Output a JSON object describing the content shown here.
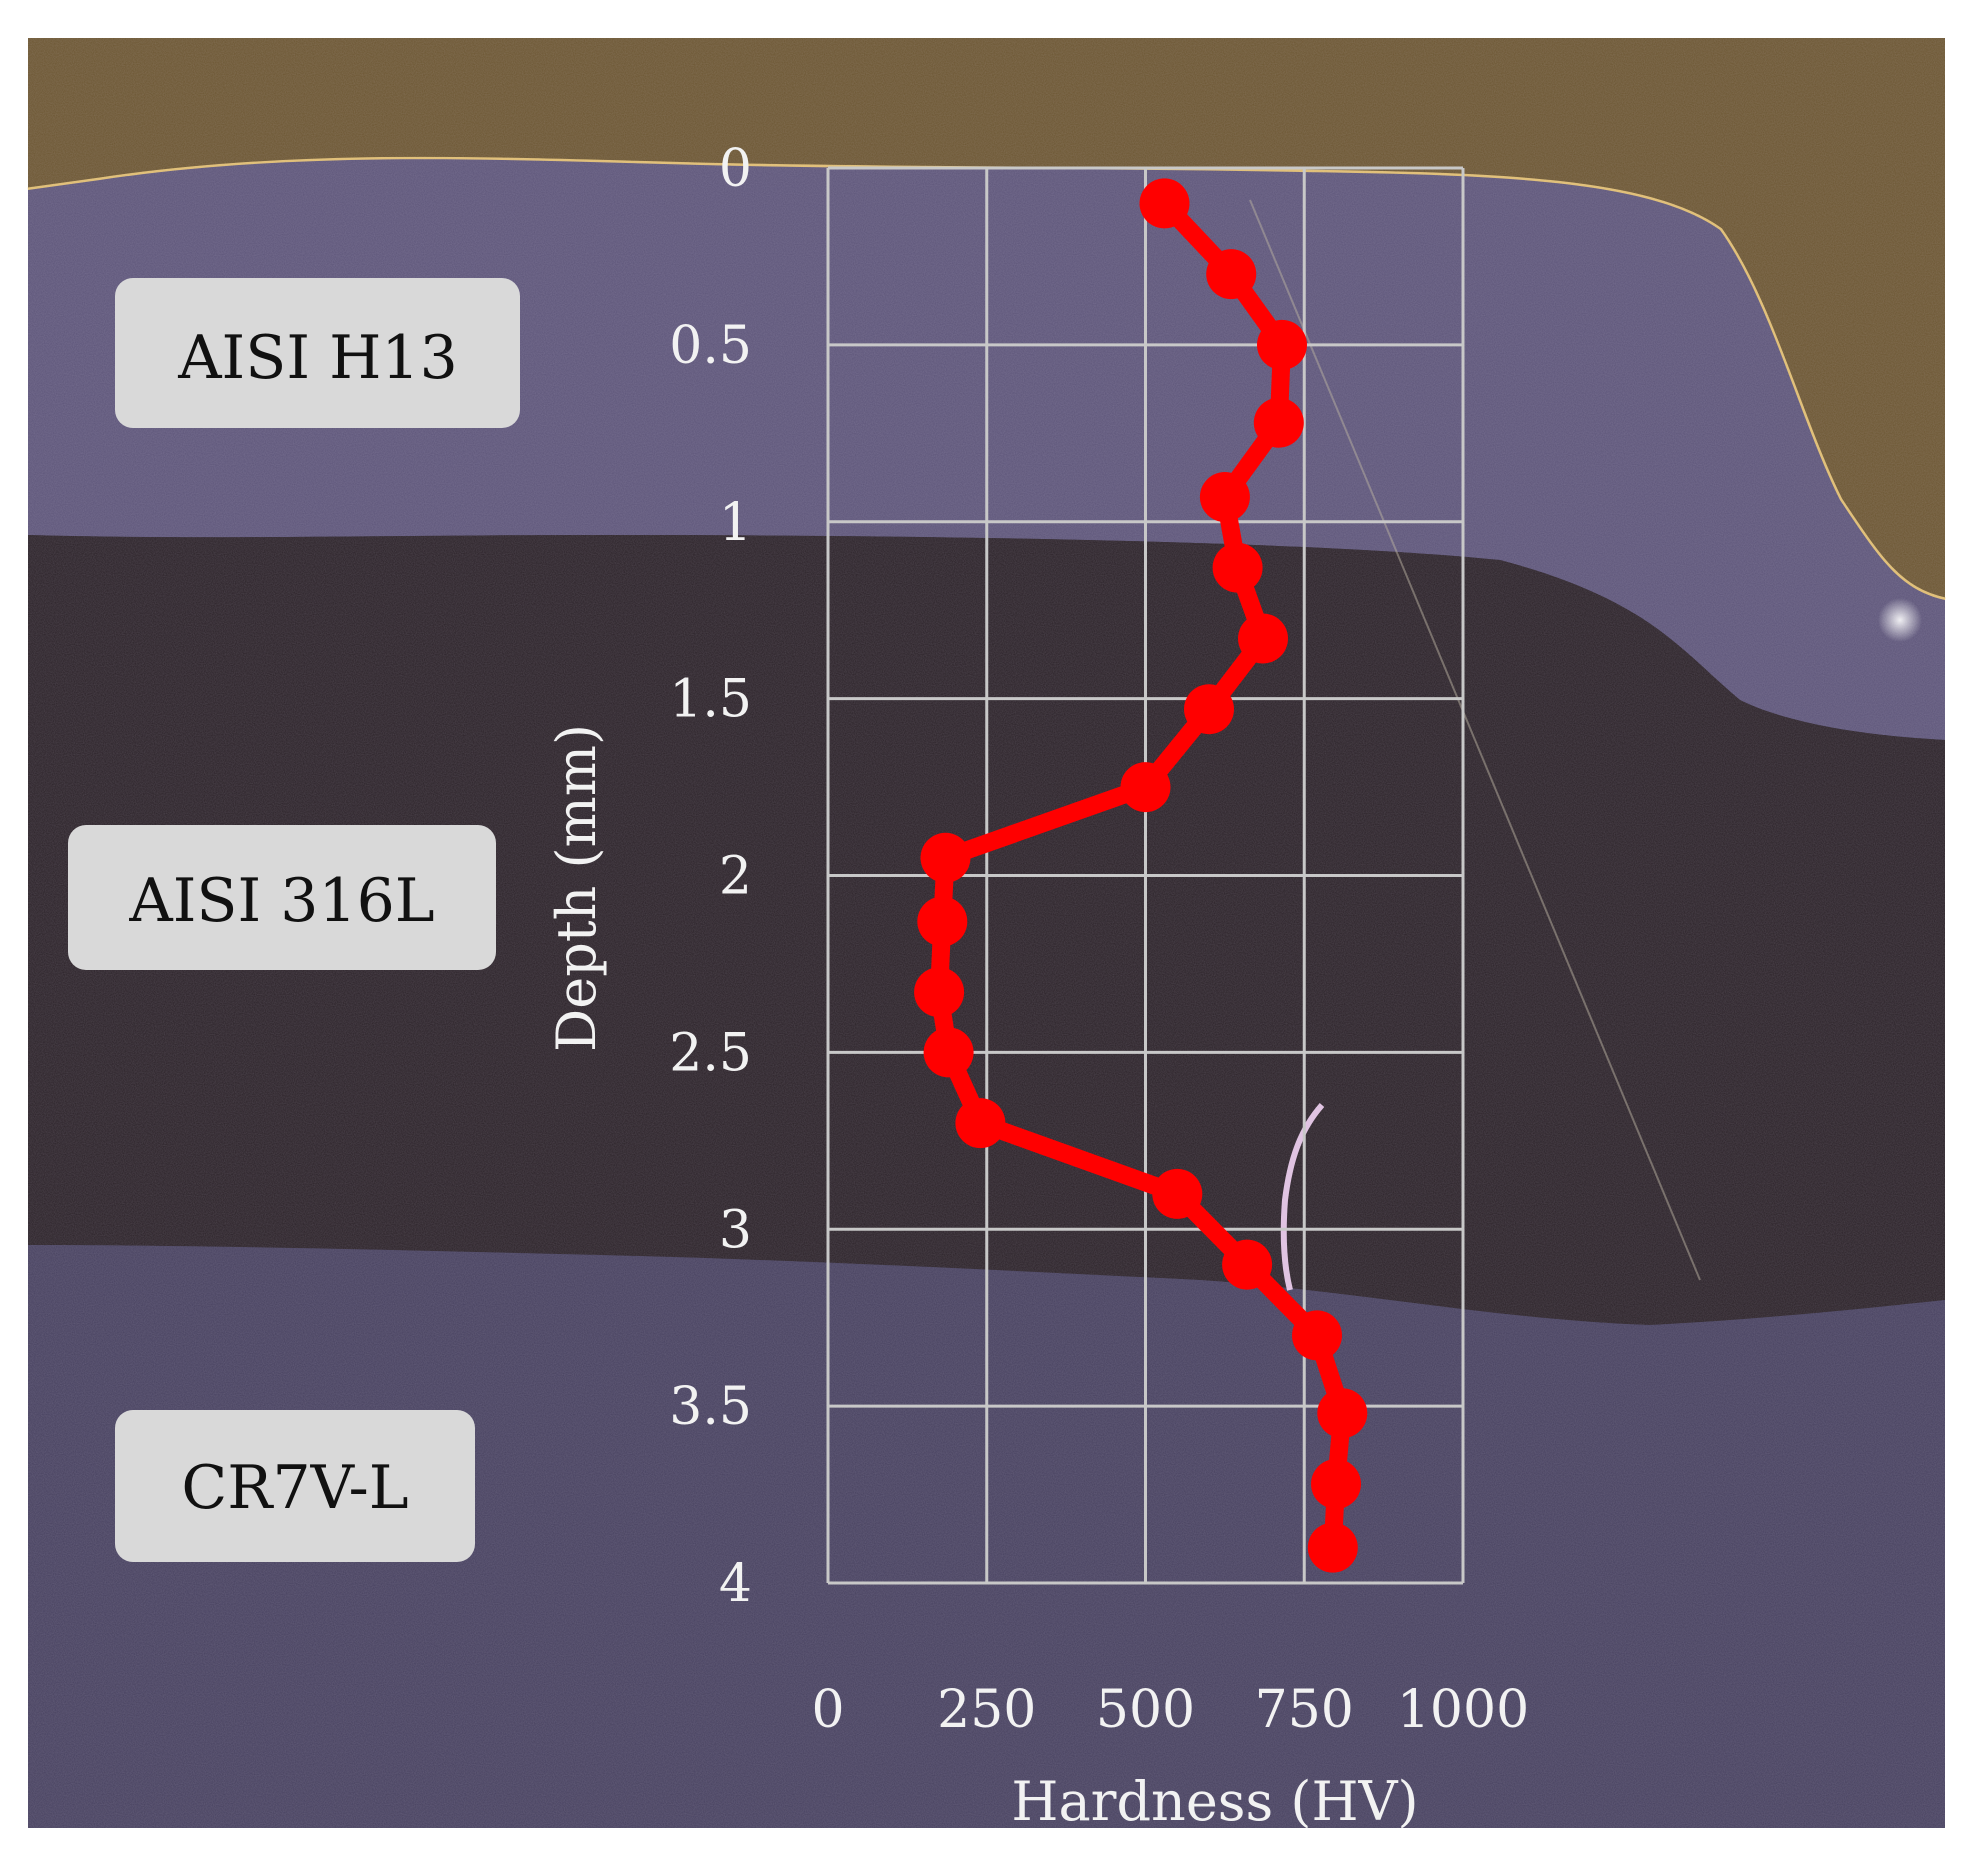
{
  "chart_data": {
    "type": "line",
    "xlabel": "Hardness (HV)",
    "ylabel": "Depth (mm)",
    "x_ticks": [
      "0",
      "250",
      "500",
      "750",
      "1000"
    ],
    "y_ticks": [
      "0",
      "0.5",
      "1",
      "1.5",
      "2",
      "2.5",
      "3",
      "3.5",
      "4"
    ],
    "xlim": [
      0,
      1000
    ],
    "ylim": [
      0,
      4
    ],
    "y_inverted": true,
    "grid": true,
    "series": [
      {
        "color": "#ff0000",
        "points": [
          {
            "hardness": 530,
            "depth": 0.1
          },
          {
            "hardness": 635,
            "depth": 0.3
          },
          {
            "hardness": 715,
            "depth": 0.5
          },
          {
            "hardness": 710,
            "depth": 0.72
          },
          {
            "hardness": 625,
            "depth": 0.93
          },
          {
            "hardness": 645,
            "depth": 1.13
          },
          {
            "hardness": 685,
            "depth": 1.33
          },
          {
            "hardness": 600,
            "depth": 1.53
          },
          {
            "hardness": 500,
            "depth": 1.75
          },
          {
            "hardness": 185,
            "depth": 1.95
          },
          {
            "hardness": 180,
            "depth": 2.13
          },
          {
            "hardness": 175,
            "depth": 2.33
          },
          {
            "hardness": 190,
            "depth": 2.5
          },
          {
            "hardness": 240,
            "depth": 2.7
          },
          {
            "hardness": 550,
            "depth": 2.9
          },
          {
            "hardness": 660,
            "depth": 3.1
          },
          {
            "hardness": 770,
            "depth": 3.3
          },
          {
            "hardness": 810,
            "depth": 3.52
          },
          {
            "hardness": 800,
            "depth": 3.72
          },
          {
            "hardness": 795,
            "depth": 3.9
          }
        ]
      }
    ],
    "annotations": [
      "AISI H13",
      "AISI 316L",
      "CR7V-L"
    ]
  },
  "layer_labels": {
    "top": "AISI H13",
    "middle": "AISI 316L",
    "bottom": "CR7V-L"
  },
  "colors": {
    "series": "#ff0000",
    "grid": "#c8c8c8",
    "axis_text": "#f2f2f2",
    "label_box": "#d9d9d9"
  }
}
